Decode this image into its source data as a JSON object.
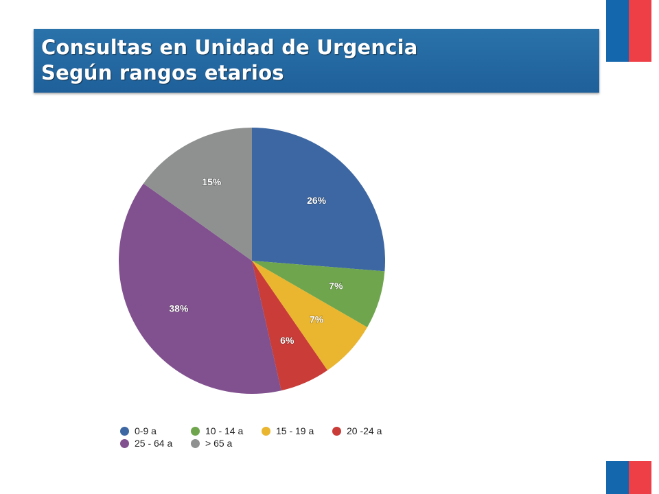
{
  "flag": {
    "blue": "#1466ad",
    "red": "#ee3f46"
  },
  "header": {
    "title_line1": "Consultas en Unidad de Urgencia",
    "title_line2": "Según rangos etarios"
  },
  "chart_data": {
    "type": "pie",
    "title": "Consultas en Unidad de Urgencia Según rangos etarios",
    "legend_position": "bottom",
    "slices": [
      {
        "label": "0-9 a",
        "value": 26,
        "display": "26%",
        "color": "#3d67a2"
      },
      {
        "label": "10 - 14 a",
        "value": 7,
        "display": "7%",
        "color": "#6fa64d"
      },
      {
        "label": "15 - 19 a",
        "value": 7,
        "display": "7%",
        "color": "#eab52f"
      },
      {
        "label": "20 -24 a",
        "value": 6,
        "display": "6%",
        "color": "#c93c37"
      },
      {
        "label": "25 - 64 a",
        "value": 38,
        "display": "38%",
        "color": "#81518f"
      },
      {
        "label": "> 65 a",
        "value": 15,
        "display": "15%",
        "color": "#8f9191"
      }
    ]
  }
}
